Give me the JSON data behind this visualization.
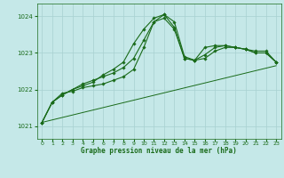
{
  "xlabel": "Graphe pression niveau de la mer (hPa)",
  "xlim": [
    -0.5,
    23.5
  ],
  "ylim": [
    1020.65,
    1024.35
  ],
  "yticks": [
    1021,
    1022,
    1023,
    1024
  ],
  "xticks": [
    0,
    1,
    2,
    3,
    4,
    5,
    6,
    7,
    8,
    9,
    10,
    11,
    12,
    13,
    14,
    15,
    16,
    17,
    18,
    19,
    20,
    21,
    22,
    23
  ],
  "background_color": "#c5e8e8",
  "grid_color": "#a8d0d0",
  "line_color": "#1a6b1a",
  "series": [
    {
      "x": [
        0,
        1,
        2,
        3,
        4,
        5,
        6,
        7,
        8,
        9,
        10,
        11,
        12,
        13,
        14,
        15,
        16,
        17,
        18,
        19,
        20,
        21,
        22,
        23
      ],
      "y": [
        1021.1,
        1021.65,
        1021.85,
        1022.0,
        1022.15,
        1022.25,
        1022.35,
        1022.45,
        1022.6,
        1022.85,
        1023.35,
        1023.85,
        1023.95,
        1023.65,
        1022.85,
        1022.8,
        1023.15,
        1023.2,
        1023.2,
        1023.15,
        1023.1,
        1023.05,
        1023.05,
        1022.75
      ],
      "marker": "D",
      "markersize": 1.8,
      "linewidth": 0.8
    },
    {
      "x": [
        0,
        1,
        2,
        3,
        4,
        5,
        6,
        7,
        8,
        9,
        10,
        11,
        12,
        13,
        14,
        15,
        16,
        17,
        18,
        19,
        20,
        21,
        22,
        23
      ],
      "y": [
        1021.1,
        1021.65,
        1021.85,
        1022.0,
        1022.1,
        1022.2,
        1022.4,
        1022.55,
        1022.75,
        1023.25,
        1023.65,
        1023.95,
        1024.05,
        1023.7,
        1022.85,
        1022.8,
        1022.95,
        1023.15,
        1023.2,
        1023.15,
        1023.1,
        1023.0,
        1023.0,
        1022.75
      ],
      "marker": "D",
      "markersize": 1.8,
      "linewidth": 0.8
    },
    {
      "x": [
        0,
        1,
        2,
        3,
        4,
        5,
        6,
        7,
        8,
        9,
        10,
        11,
        12,
        13,
        14,
        15,
        16,
        17,
        18,
        19,
        20,
        21,
        22,
        23
      ],
      "y": [
        1021.1,
        1021.65,
        1021.9,
        1021.95,
        1022.05,
        1022.1,
        1022.15,
        1022.25,
        1022.35,
        1022.55,
        1023.15,
        1023.85,
        1024.05,
        1023.85,
        1022.9,
        1022.8,
        1022.85,
        1023.05,
        1023.15,
        1023.15,
        1023.1,
        1023.0,
        1023.0,
        1022.75
      ],
      "marker": "D",
      "markersize": 1.8,
      "linewidth": 0.8
    },
    {
      "x": [
        0,
        23
      ],
      "y": [
        1021.1,
        1022.65
      ],
      "marker": null,
      "markersize": 0,
      "linewidth": 0.7
    }
  ]
}
